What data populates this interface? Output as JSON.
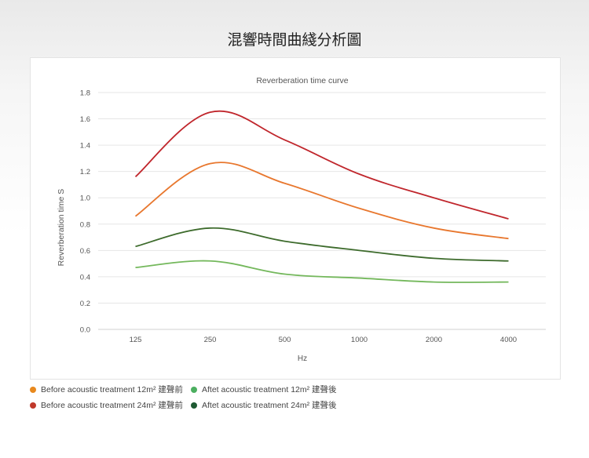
{
  "page_title": "混響時間曲綫分析圖",
  "chart_data": {
    "type": "line",
    "title": "Reverberation time curve",
    "xlabel": "Hz",
    "ylabel": "Reverberation time  S",
    "categories": [
      "125",
      "250",
      "500",
      "1000",
      "2000",
      "4000"
    ],
    "y_ticks": [
      "0.0",
      "0.2",
      "0.4",
      "0.6",
      "0.8",
      "1.0",
      "1.2",
      "1.4",
      "1.6",
      "1.8"
    ],
    "ylim": [
      0,
      1.8
    ],
    "grid": true,
    "legend_position": "bottom-left",
    "series": [
      {
        "name": "Before acoustic treatment 12m² 建聲前",
        "color": "#e8772e",
        "values": [
          0.86,
          1.26,
          1.11,
          0.92,
          0.77,
          0.69
        ]
      },
      {
        "name": "Before acoustic treatment 24m² 建聲前",
        "color": "#c0262c",
        "values": [
          1.16,
          1.65,
          1.44,
          1.18,
          1.0,
          0.84
        ]
      },
      {
        "name": "Aftet acoustic treatment 12m² 建聲後",
        "color": "#74b85c",
        "values": [
          0.47,
          0.52,
          0.42,
          0.39,
          0.36,
          0.36
        ]
      },
      {
        "name": "Aftet acoustic treatment 24m² 建聲後",
        "color": "#3d6b2c",
        "values": [
          0.63,
          0.77,
          0.67,
          0.6,
          0.54,
          0.52
        ]
      }
    ]
  },
  "legend": {
    "dot_colors": [
      "#e8891e",
      "#c0392b",
      "#4caf60",
      "#1e5a32"
    ]
  }
}
